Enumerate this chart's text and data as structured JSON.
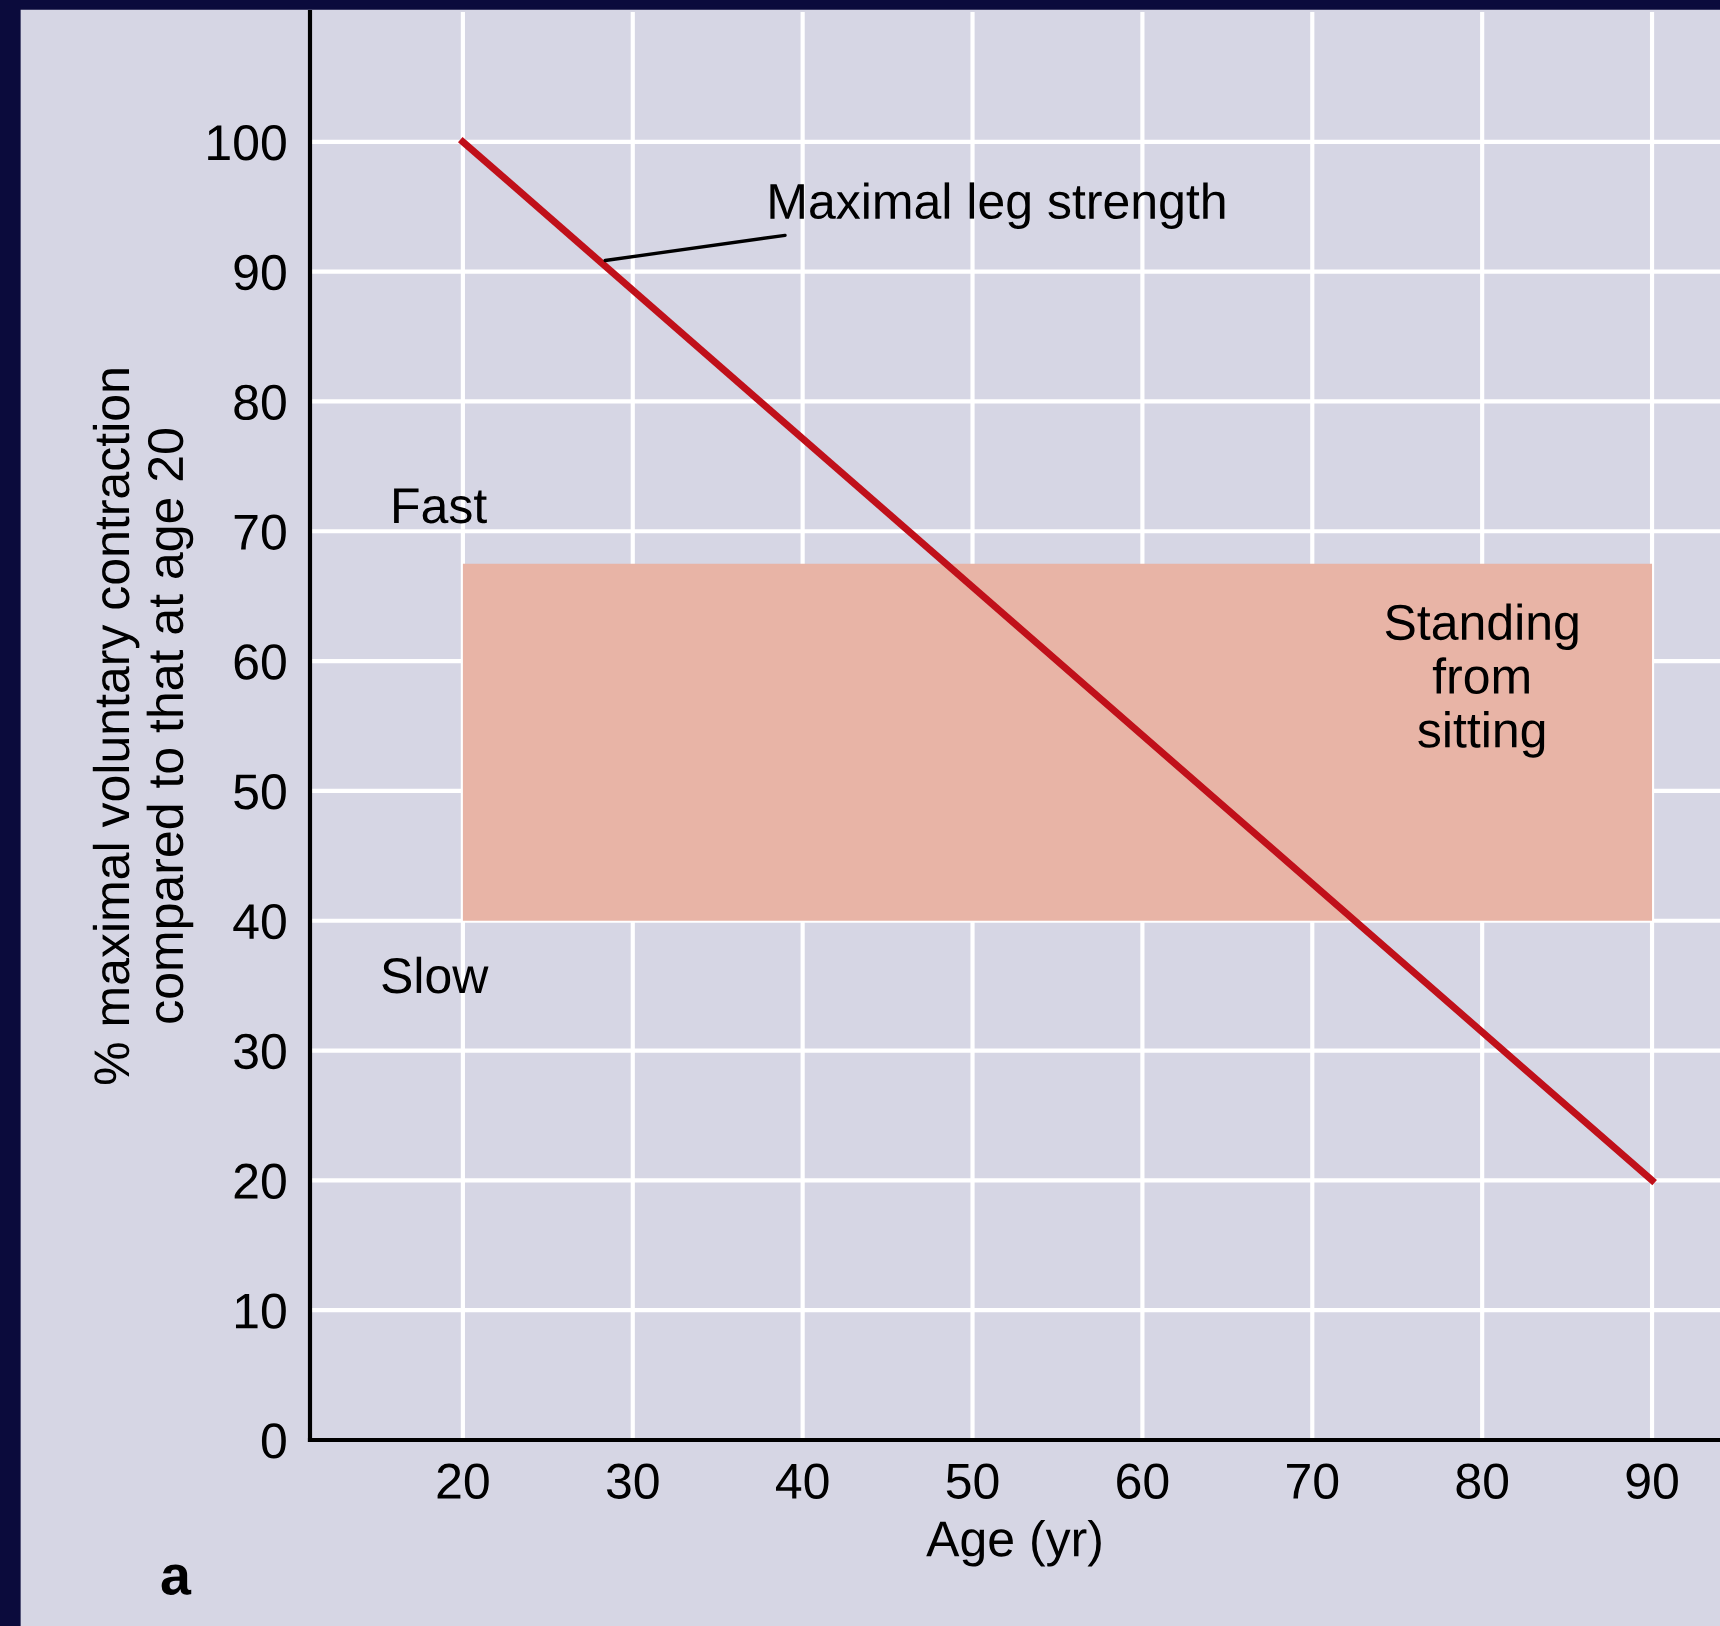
{
  "chart_data": {
    "type": "line",
    "xlabel": "Age (yr)",
    "ylabel": "% maximal voluntary contraction\ncompared to that at age 20",
    "x": [
      20,
      90
    ],
    "series": [
      {
        "name": "Maximal leg strength",
        "color": "#c0101a",
        "values": [
          100,
          20
        ]
      }
    ],
    "xlim": [
      11,
      94
    ],
    "ylim": [
      0,
      110
    ],
    "xticks": [
      20,
      30,
      40,
      50,
      60,
      70,
      80,
      90
    ],
    "yticks": [
      0,
      10,
      20,
      30,
      40,
      50,
      60,
      70,
      80,
      90,
      100
    ],
    "grid": true,
    "marker": "none",
    "line_style": "solid",
    "bands": [
      {
        "axis": "y",
        "from": 40,
        "to": 67.5,
        "label": "Standing\nfrom\nsitting",
        "color": "#e8b4a6"
      }
    ],
    "annotations": [
      "Fast",
      "Slow",
      "a"
    ]
  }
}
